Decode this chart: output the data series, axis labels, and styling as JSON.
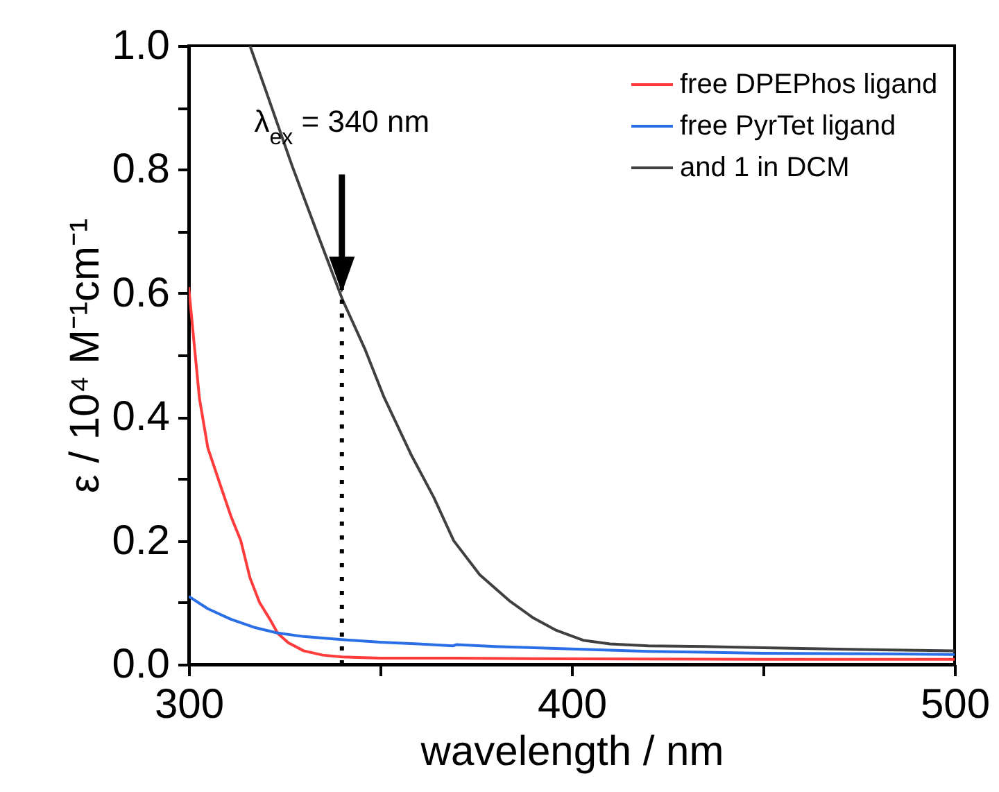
{
  "chart_data": {
    "type": "line",
    "xlabel": "wavelength / nm",
    "ylabel": "ε / 10⁴ M⁻¹cm⁻¹",
    "xlim": [
      300,
      500
    ],
    "xticks": [
      300,
      {
        "value": 350,
        "label": null
      },
      400,
      {
        "value": 450,
        "label": null
      },
      500
    ],
    "ylim": [
      0,
      1
    ],
    "yticks": [
      {
        "value": 0,
        "label": "0.0"
      },
      {
        "value": 0.1,
        "label": null
      },
      0.2,
      {
        "value": 0.3,
        "label": null
      },
      0.4,
      {
        "value": 0.5,
        "label": null
      },
      0.6,
      {
        "value": 0.7,
        "label": null
      },
      0.8,
      {
        "value": 0.9,
        "label": null
      },
      {
        "value": 1,
        "label": "1.0"
      }
    ],
    "grid": false,
    "legend": "top right",
    "marker": "none",
    "line_style": "solid",
    "ref_lines": [
      {
        "axis": "x",
        "value": 340,
        "label": "λ$_{ex}$ = 340 nm",
        "line_style": "dotted",
        "color": "#000000"
      }
    ],
    "series": [
      {
        "name": "free DPEPhos ligand",
        "color": "#ff3b3b",
        "x": [
          300,
          302.8,
          305,
          308.8,
          311,
          313.6,
          316,
          318.5,
          321,
          323.3,
          326,
          330,
          335,
          340,
          350,
          370,
          400,
          450,
          500
        ],
        "values": [
          0.61,
          0.43,
          0.35,
          0.28,
          0.24,
          0.2,
          0.14,
          0.1,
          0.075,
          0.05,
          0.035,
          0.022,
          0.015,
          0.012,
          0.01,
          0.01,
          0.009,
          0.008,
          0.008
        ]
      },
      {
        "name": "free PyrTet ligand",
        "color": "#2a6fe6",
        "x": [
          300,
          305,
          311,
          317,
          323,
          330,
          340,
          350,
          360,
          369,
          370,
          380,
          400,
          420,
          450,
          480,
          500
        ],
        "values": [
          0.11,
          0.09,
          0.073,
          0.06,
          0.051,
          0.045,
          0.04,
          0.036,
          0.033,
          0.03,
          0.032,
          0.029,
          0.025,
          0.021,
          0.018,
          0.017,
          0.016
        ]
      },
      {
        "name": "and 1 in DCM",
        "color": "#404040",
        "x": [
          316,
          320,
          327,
          334,
          340.2,
          346,
          351,
          358,
          364,
          369.2,
          376,
          383.7,
          390,
          396,
          403,
          410,
          420,
          435,
          450,
          475,
          500
        ],
        "values": [
          1.0,
          0.93,
          0.806,
          0.69,
          0.589,
          0.51,
          0.432,
          0.34,
          0.27,
          0.2,
          0.145,
          0.103,
          0.075,
          0.055,
          0.039,
          0.033,
          0.03,
          0.029,
          0.027,
          0.024,
          0.022
        ]
      }
    ]
  }
}
